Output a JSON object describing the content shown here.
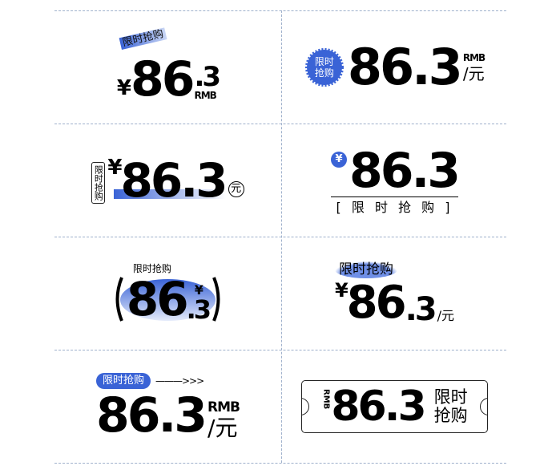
{
  "price": "86.3",
  "integer_part": "86",
  "decimal_part": ".3",
  "currency_symbol": "¥",
  "currency_code": "RMB",
  "per_yuan": "/元",
  "yuan": "元",
  "flash_sale": "限时抢购",
  "flash_sale_spaced": "[ 限 时 抢 购 ]",
  "flash_sale_line1": "限时",
  "flash_sale_line2": "抢购",
  "arrow": "———>>>",
  "colors": {
    "accent": "#3a63d6",
    "grid": "#9fb1cc",
    "text": "#000000"
  }
}
